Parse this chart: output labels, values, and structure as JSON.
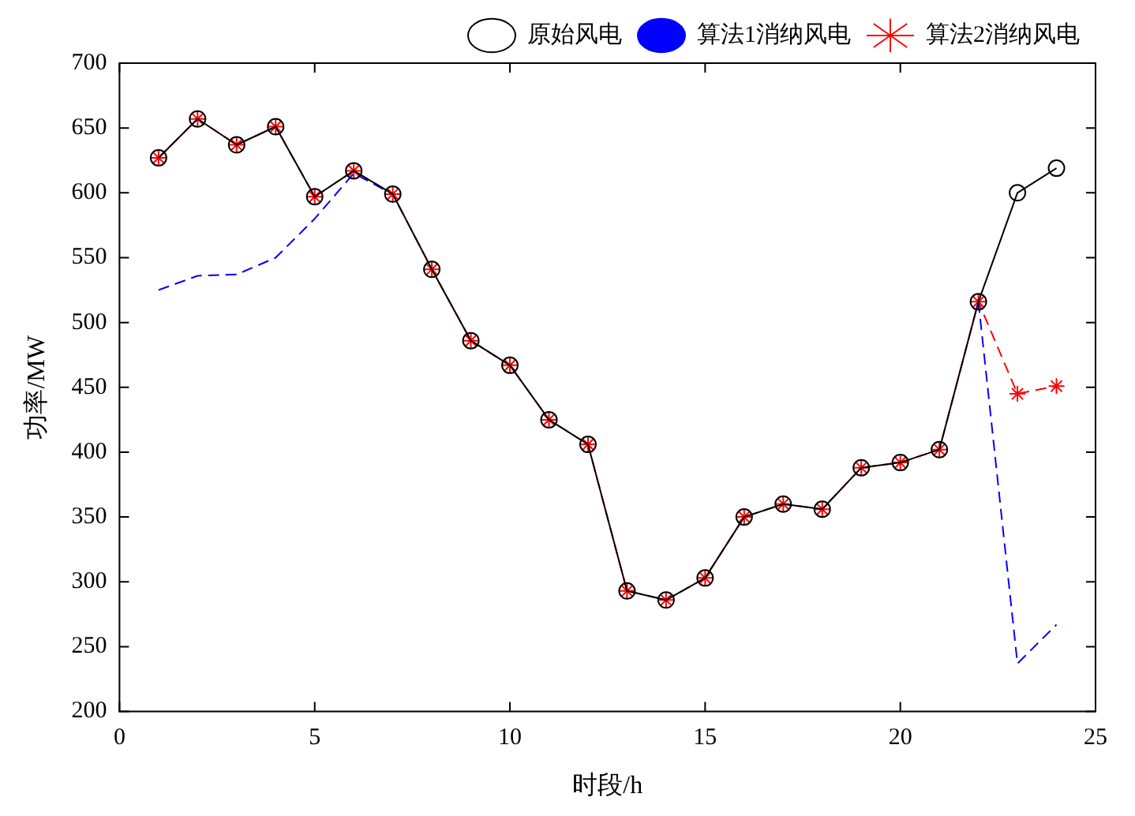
{
  "chart_data": {
    "type": "line",
    "xlabel": "时段/h",
    "ylabel": "功率/MW",
    "x": [
      1,
      2,
      3,
      4,
      5,
      6,
      7,
      8,
      9,
      10,
      11,
      12,
      13,
      14,
      15,
      16,
      17,
      18,
      19,
      20,
      21,
      22,
      23,
      24
    ],
    "series": [
      {
        "name": "原始风电",
        "color": "#000000",
        "marker": "circle",
        "line_style": "solid",
        "values": [
          627,
          657,
          637,
          651,
          597,
          617,
          599,
          541,
          486,
          467,
          425,
          406,
          293,
          286,
          303,
          350,
          360,
          356,
          388,
          392,
          402,
          516,
          600,
          619
        ]
      },
      {
        "name": "算法1消纳风电",
        "color": "#0000ff",
        "marker": "none",
        "line_style": "dashed",
        "values": [
          525,
          536,
          537,
          550,
          580,
          615,
          599,
          null,
          null,
          null,
          null,
          null,
          null,
          null,
          null,
          null,
          null,
          null,
          null,
          null,
          null,
          516,
          237,
          267
        ]
      },
      {
        "name": "算法2消纳风电",
        "color": "#ff0000",
        "marker": "cross",
        "line_style": "dashed",
        "values": [
          627,
          657,
          637,
          651,
          597,
          617,
          599,
          541,
          486,
          467,
          425,
          406,
          293,
          286,
          303,
          350,
          360,
          356,
          388,
          392,
          402,
          516,
          445,
          451
        ]
      }
    ],
    "xlim": [
      0,
      25
    ],
    "xticks": [
      0,
      5,
      10,
      15,
      20,
      25
    ],
    "ylim": [
      200,
      700
    ],
    "yticks": [
      200,
      250,
      300,
      350,
      400,
      450,
      500,
      550,
      600,
      650,
      700
    ],
    "grid": false,
    "legend": "top right"
  }
}
